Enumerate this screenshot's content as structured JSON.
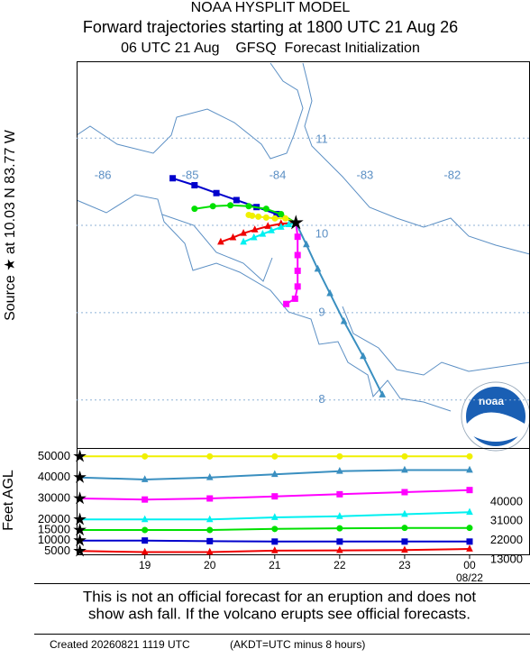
{
  "header": {
    "title": "NOAA HYSPLIT MODEL",
    "subtitle": "Forward trajectories starting at 1800 UTC 21 Aug 26",
    "init": "06 UTC 21 Aug    GFSQ  Forecast Initialization"
  },
  "source_label": "Source ★ at 10.03 N 83.77 W",
  "logo_text": "noaa",
  "chart_data": [
    {
      "type": "trajectory",
      "xlim": [
        -86.28,
        -81.09
      ],
      "ylim": [
        7.45,
        11.88
      ],
      "xticks": [
        -86,
        -85,
        -84,
        -83,
        -82
      ],
      "yticks": [
        8,
        9,
        10,
        11
      ],
      "source": {
        "lon": -83.77,
        "lat": 10.03
      },
      "series": [
        {
          "color": "#0000cc",
          "marker": "square",
          "lon": [
            -83.77,
            -83.99,
            -84.22,
            -84.45,
            -84.68,
            -84.93,
            -85.18
          ],
          "lat": [
            10.03,
            10.13,
            10.21,
            10.29,
            10.37,
            10.46,
            10.54
          ]
        },
        {
          "color": "#00e000",
          "marker": "circle",
          "lon": [
            -83.77,
            -83.94,
            -84.11,
            -84.31,
            -84.52,
            -84.72,
            -84.93
          ],
          "lat": [
            10.03,
            10.13,
            10.19,
            10.22,
            10.23,
            10.22,
            10.19
          ]
        },
        {
          "color": "#f0f000",
          "marker": "circle",
          "lon": [
            -83.77,
            -83.89,
            -84.01,
            -84.11,
            -84.2,
            -84.27,
            -84.31
          ],
          "lat": [
            10.03,
            10.08,
            10.08,
            10.09,
            10.1,
            10.11,
            10.12
          ]
        },
        {
          "color": "#ee0000",
          "marker": "triangle",
          "lon": [
            -83.77,
            -83.94,
            -84.09,
            -84.24,
            -84.37,
            -84.49,
            -84.63
          ],
          "lat": [
            10.03,
            10.02,
            9.99,
            9.95,
            9.91,
            9.86,
            9.81
          ]
        },
        {
          "color": "#00f0f0",
          "marker": "triangle",
          "lon": [
            -83.77,
            -83.85,
            -83.94,
            -84.05,
            -84.15,
            -84.25,
            -84.37
          ],
          "lat": [
            10.03,
            10.01,
            9.98,
            9.94,
            9.9,
            9.86,
            9.81
          ]
        },
        {
          "color": "#ff00ff",
          "marker": "square",
          "lon": [
            -83.77,
            -83.75,
            -83.75,
            -83.75,
            -83.75,
            -83.78,
            -83.88
          ],
          "lat": [
            10.03,
            9.87,
            9.66,
            9.48,
            9.3,
            9.16,
            9.1
          ]
        },
        {
          "color": "#3a8fc0",
          "marker": "triangle",
          "lon": [
            -83.77,
            -83.65,
            -83.52,
            -83.38,
            -83.22,
            -83.0,
            -82.78
          ],
          "lat": [
            10.03,
            9.78,
            9.5,
            9.22,
            8.9,
            8.5,
            8.06
          ]
        }
      ]
    },
    {
      "type": "line",
      "ylabel": "Feet AGL",
      "x": [
        18,
        19,
        20,
        21,
        22,
        23,
        24
      ],
      "xlim": [
        17.95,
        24.93
      ],
      "xticks": [
        19,
        20,
        21,
        22,
        23,
        {
          "value": 24,
          "label": "00"
        }
      ],
      "x_sublabel": "08/22",
      "ylim": [
        3000,
        54000
      ],
      "yticks": [
        5000,
        10000,
        15000,
        20000,
        30000,
        40000,
        50000
      ],
      "right_labels": [
        "40000",
        "31000",
        "22000",
        "13000"
      ],
      "series": [
        {
          "color": "#0000cc",
          "marker": "square",
          "values": [
            10000,
            10000,
            9700,
            9500,
            9500,
            9500,
            9500
          ]
        },
        {
          "color": "#00e000",
          "marker": "circle",
          "values": [
            15000,
            15000,
            15000,
            15500,
            15800,
            16000,
            16000
          ]
        },
        {
          "color": "#f0f000",
          "marker": "circle",
          "values": [
            50000,
            50000,
            50000,
            50000,
            50000,
            50000,
            50000
          ]
        },
        {
          "color": "#ee0000",
          "marker": "triangle",
          "values": [
            5000,
            4500,
            4500,
            5200,
            5300,
            5500,
            6000
          ]
        },
        {
          "color": "#00f0f0",
          "marker": "triangle",
          "values": [
            20000,
            20000,
            20000,
            21000,
            21500,
            22500,
            23500
          ]
        },
        {
          "color": "#ff00ff",
          "marker": "square",
          "values": [
            30000,
            29500,
            30000,
            31000,
            32000,
            33000,
            34000
          ]
        },
        {
          "color": "#3a8fc0",
          "marker": "triangle",
          "values": [
            40000,
            39000,
            40000,
            41500,
            43000,
            43500,
            43500
          ]
        }
      ]
    }
  ],
  "footer": {
    "disclaimer": [
      "This is not an official forecast for an eruption and does not",
      "show ash fall. If the volcano erupts see official forecasts."
    ],
    "created": "Created 20260821 1119 UTC",
    "note": "(AKDT=UTC minus 8 hours)"
  }
}
